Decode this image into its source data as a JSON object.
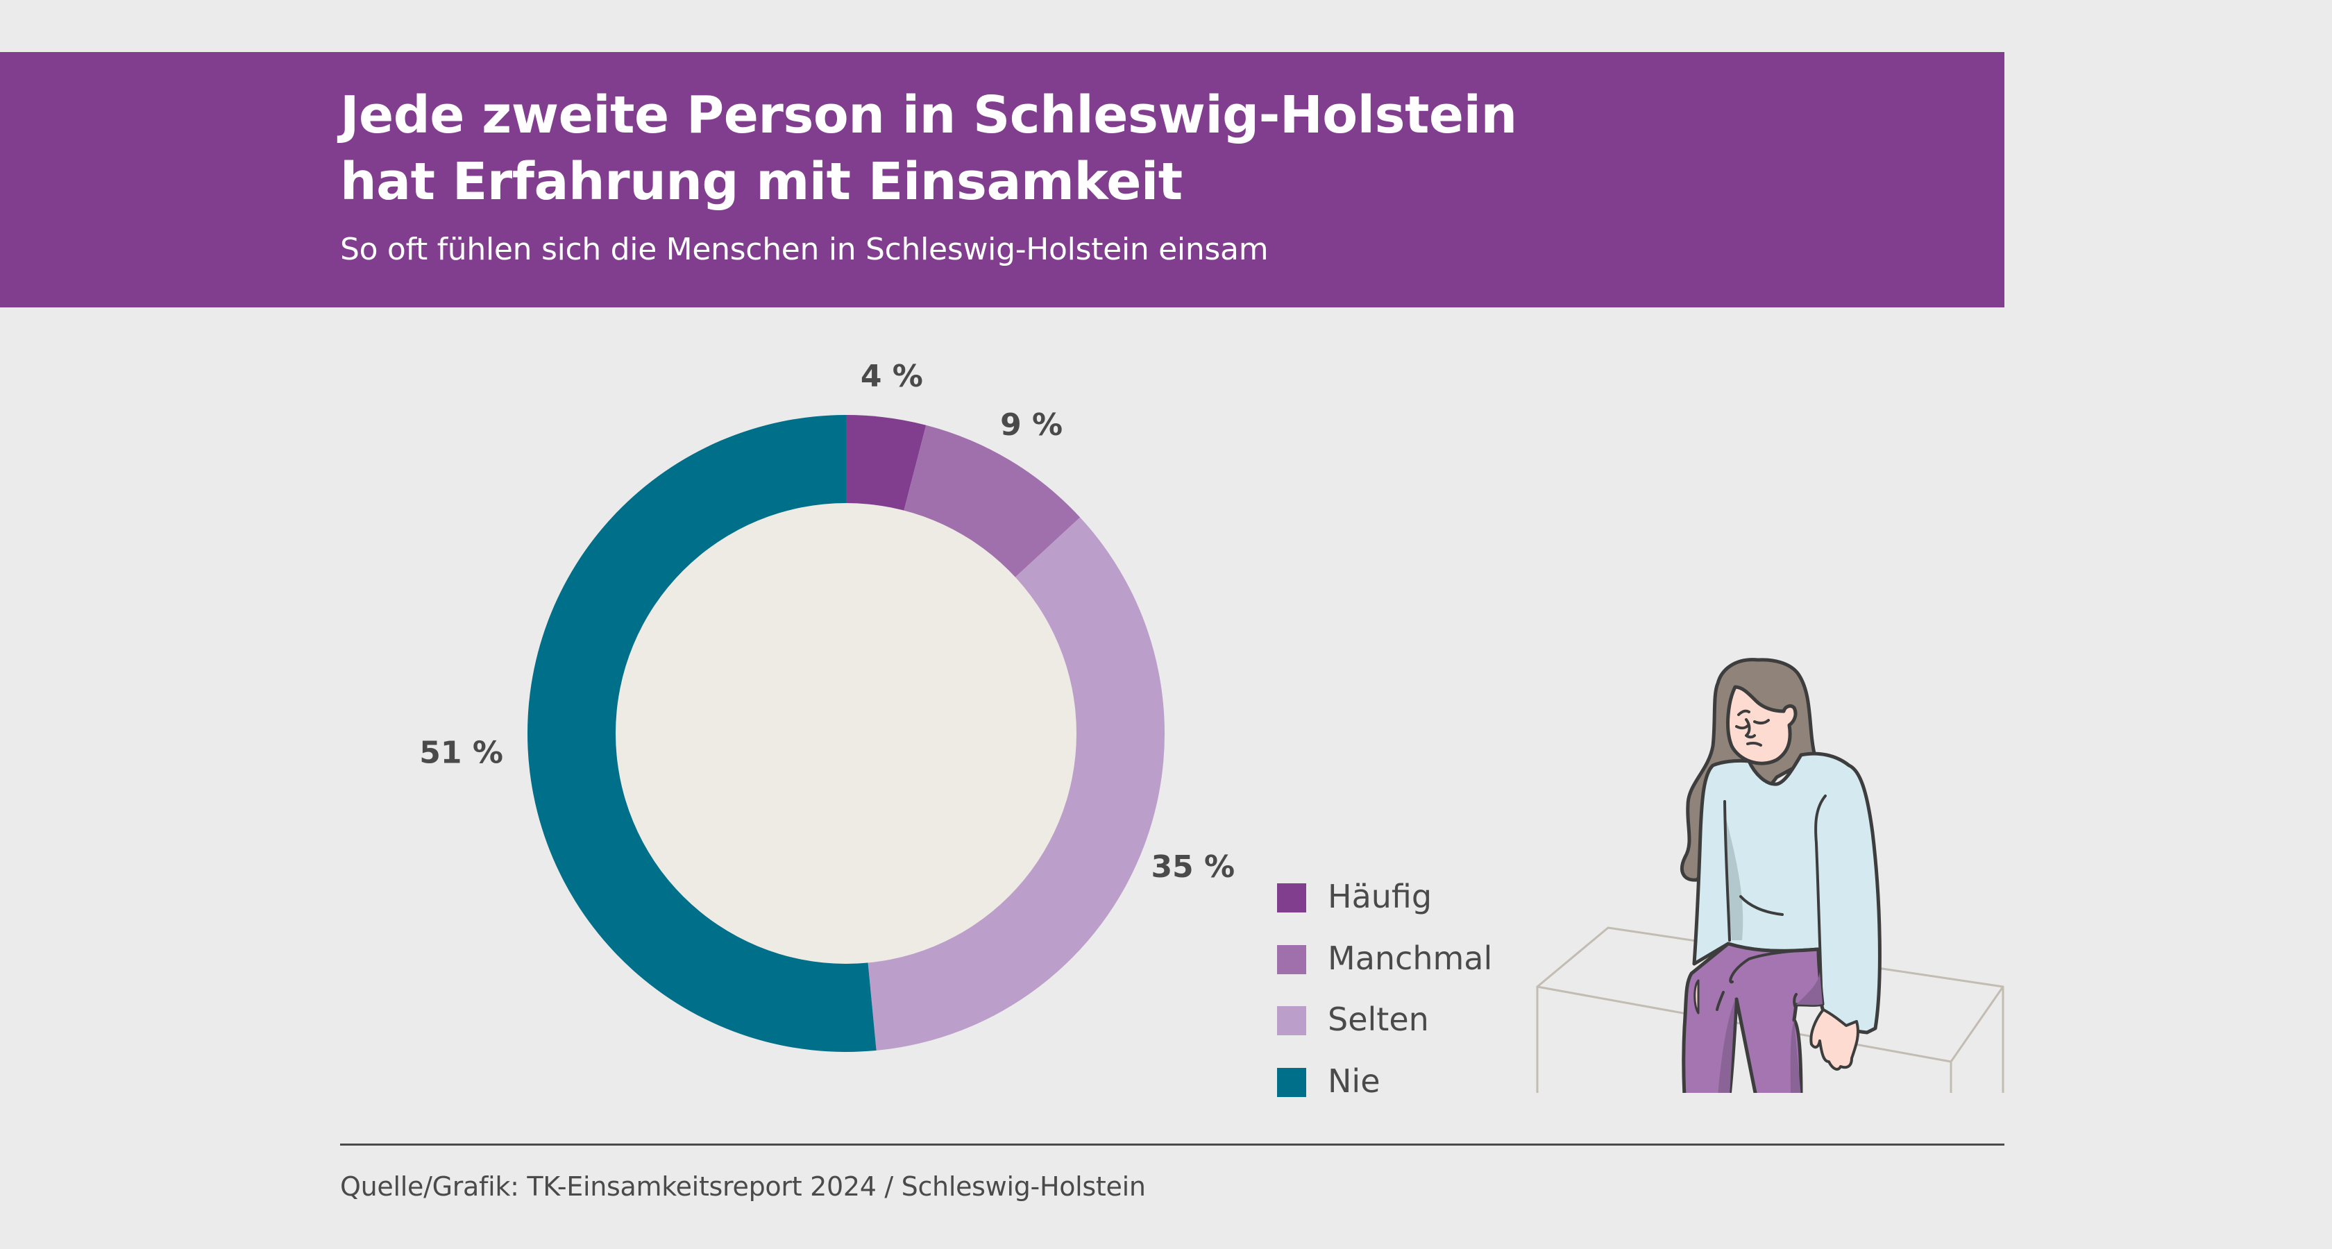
{
  "header": {
    "title_line1": "Jede zweite Person in Schleswig-Holstein",
    "title_line2": "hat Erfahrung mit Einsamkeit",
    "subtitle": "So oft fühlen sich die Menschen in Schleswig-Holstein einsam"
  },
  "colors": {
    "header_band": "#823e8e",
    "background": "#ebebeb",
    "donut_center": "#eeebe5",
    "text_dark": "#4a4a4a"
  },
  "chart_data": {
    "type": "pie",
    "variant": "donut",
    "title": "So oft fühlen sich die Menschen in Schleswig-Holstein einsam",
    "unit": "%",
    "categories": [
      "Häufig",
      "Manchmal",
      "Selten",
      "Nie"
    ],
    "values": [
      4,
      9,
      35,
      51
    ],
    "labels": [
      "4 %",
      "9 %",
      "35 %",
      "51 %"
    ],
    "colors": [
      "#823e8e",
      "#a070ad",
      "#bc9eca",
      "#006f89"
    ],
    "start": "top",
    "direction": "clockwise",
    "legend_position": "bottom-right"
  },
  "legend": {
    "items": [
      {
        "label": "Häufig",
        "color": "#823e8e"
      },
      {
        "label": "Manchmal",
        "color": "#a070ad"
      },
      {
        "label": "Selten",
        "color": "#bc9eca"
      },
      {
        "label": "Nie",
        "color": "#006f89"
      }
    ]
  },
  "illustration": {
    "icon": "sad-woman-sitting-on-bench-illustration"
  },
  "footer": {
    "source": "Quelle/Grafik: TK-Einsamkeitsreport 2024 / Schleswig-Holstein"
  }
}
